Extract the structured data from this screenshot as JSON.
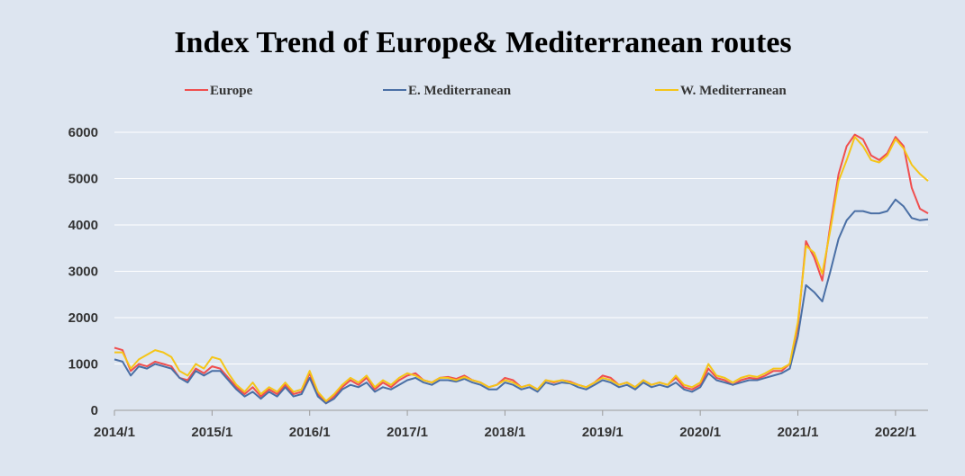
{
  "chart_data": {
    "type": "line",
    "title": "Index Trend of Europe& Mediterranean routes",
    "xlabel": "",
    "ylabel": "",
    "x_ticks": [
      "2014/1",
      "2015/1",
      "2016/1",
      "2017/1",
      "2018/1",
      "2019/1",
      "2020/1",
      "2021/1",
      "2022/1"
    ],
    "xlim": [
      "2014/1",
      "2022/5"
    ],
    "ylim": [
      0,
      6000
    ],
    "y_ticks": [
      0,
      1000,
      2000,
      3000,
      4000,
      5000,
      6000
    ],
    "grid": "horizontal",
    "legend_position": "top",
    "x": [
      "2014/1",
      "2014/2",
      "2014/3",
      "2014/4",
      "2014/5",
      "2014/6",
      "2014/7",
      "2014/8",
      "2014/9",
      "2014/10",
      "2014/11",
      "2014/12",
      "2015/1",
      "2015/2",
      "2015/3",
      "2015/4",
      "2015/5",
      "2015/6",
      "2015/7",
      "2015/8",
      "2015/9",
      "2015/10",
      "2015/11",
      "2015/12",
      "2016/1",
      "2016/2",
      "2016/3",
      "2016/4",
      "2016/5",
      "2016/6",
      "2016/7",
      "2016/8",
      "2016/9",
      "2016/10",
      "2016/11",
      "2016/12",
      "2017/1",
      "2017/2",
      "2017/3",
      "2017/4",
      "2017/5",
      "2017/6",
      "2017/7",
      "2017/8",
      "2017/9",
      "2017/10",
      "2017/11",
      "2017/12",
      "2018/1",
      "2018/2",
      "2018/3",
      "2018/4",
      "2018/5",
      "2018/6",
      "2018/7",
      "2018/8",
      "2018/9",
      "2018/10",
      "2018/11",
      "2018/12",
      "2019/1",
      "2019/2",
      "2019/3",
      "2019/4",
      "2019/5",
      "2019/6",
      "2019/7",
      "2019/8",
      "2019/9",
      "2019/10",
      "2019/11",
      "2019/12",
      "2020/1",
      "2020/2",
      "2020/3",
      "2020/4",
      "2020/5",
      "2020/6",
      "2020/7",
      "2020/8",
      "2020/9",
      "2020/10",
      "2020/11",
      "2020/12",
      "2021/1",
      "2021/2",
      "2021/3",
      "2021/4",
      "2021/5",
      "2021/6",
      "2021/7",
      "2021/8",
      "2021/9",
      "2021/10",
      "2021/11",
      "2021/12",
      "2022/1",
      "2022/2",
      "2022/3",
      "2022/4",
      "2022/5"
    ],
    "series": [
      {
        "name": "Europe",
        "color": "#f04e4e",
        "values": [
          1350,
          1300,
          850,
          1000,
          950,
          1050,
          1000,
          950,
          700,
          650,
          900,
          800,
          950,
          900,
          700,
          500,
          350,
          500,
          300,
          450,
          350,
          550,
          350,
          400,
          800,
          350,
          150,
          300,
          500,
          650,
          550,
          700,
          450,
          600,
          500,
          650,
          750,
          800,
          650,
          600,
          700,
          720,
          680,
          750,
          650,
          600,
          500,
          550,
          700,
          650,
          500,
          550,
          450,
          650,
          600,
          650,
          620,
          550,
          500,
          600,
          750,
          700,
          550,
          600,
          500,
          650,
          550,
          600,
          550,
          700,
          500,
          450,
          550,
          900,
          700,
          650,
          550,
          650,
          700,
          680,
          750,
          850,
          850,
          1000,
          1800,
          3650,
          3300,
          2800,
          4000,
          5100,
          5700,
          5950,
          5850,
          5500,
          5400,
          5550,
          5900,
          5700,
          4800,
          4350,
          4250
        ]
      },
      {
        "name": "E. Mediterranean",
        "color": "#4a6fa5",
        "values": [
          1100,
          1050,
          750,
          950,
          900,
          1000,
          950,
          900,
          700,
          600,
          850,
          750,
          850,
          850,
          650,
          450,
          300,
          400,
          250,
          400,
          300,
          500,
          300,
          350,
          700,
          300,
          150,
          250,
          450,
          550,
          500,
          600,
          400,
          500,
          450,
          550,
          650,
          700,
          600,
          550,
          650,
          650,
          620,
          680,
          600,
          550,
          450,
          450,
          600,
          550,
          450,
          500,
          400,
          600,
          550,
          600,
          580,
          500,
          450,
          550,
          650,
          600,
          500,
          550,
          450,
          600,
          500,
          550,
          500,
          600,
          450,
          400,
          500,
          800,
          650,
          600,
          550,
          600,
          650,
          650,
          700,
          750,
          800,
          900,
          1600,
          2700,
          2550,
          2350,
          3000,
          3700,
          4100,
          4300,
          4300,
          4250,
          4250,
          4300,
          4550,
          4400,
          4150,
          4100,
          4120
        ]
      },
      {
        "name": "W. Mediterranean",
        "color": "#f5c518",
        "values": [
          1250,
          1250,
          900,
          1100,
          1200,
          1300,
          1250,
          1150,
          850,
          750,
          1000,
          900,
          1150,
          1100,
          800,
          550,
          400,
          600,
          350,
          500,
          400,
          600,
          400,
          450,
          850,
          400,
          200,
          350,
          550,
          700,
          600,
          750,
          500,
          650,
          550,
          700,
          800,
          750,
          650,
          600,
          700,
          700,
          650,
          720,
          650,
          600,
          500,
          550,
          650,
          600,
          500,
          550,
          450,
          650,
          620,
          650,
          600,
          550,
          500,
          600,
          700,
          650,
          550,
          600,
          500,
          650,
          550,
          600,
          550,
          750,
          550,
          500,
          600,
          1000,
          750,
          700,
          600,
          700,
          750,
          720,
          800,
          900,
          900,
          1000,
          1900,
          3550,
          3400,
          2950,
          3900,
          4950,
          5400,
          5900,
          5700,
          5400,
          5350,
          5500,
          5850,
          5650,
          5300,
          5100,
          4950
        ]
      }
    ]
  }
}
